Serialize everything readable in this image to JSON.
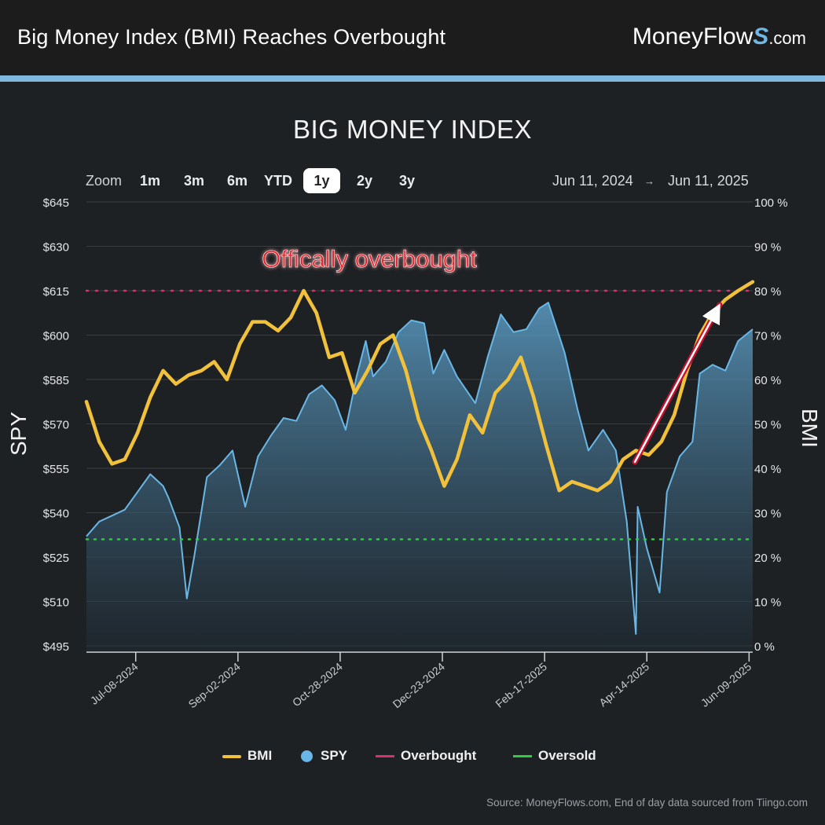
{
  "header": {
    "title": "Big Money Index (BMI) Reaches Overbought",
    "brand_main": "MoneyFlow",
    "brand_s": "S",
    "brand_tld": ".com",
    "accent_color": "#7fb8df"
  },
  "zoom": {
    "label": "Zoom",
    "buttons": [
      "1m",
      "3m",
      "6m",
      "YTD",
      "1y",
      "2y",
      "3y"
    ],
    "active": "1y"
  },
  "range": {
    "start": "Jun 11, 2024",
    "arrow": "→",
    "end": "Jun 11, 2025"
  },
  "legend": {
    "bmi": "BMI",
    "spy": "SPY",
    "overbought": "Overbought",
    "oversold": "Oversold"
  },
  "source": "Source: MoneyFlows.com, End of day data sourced from Tiingo.com",
  "chart_data": {
    "type": "line",
    "title": "BIG MONEY INDEX",
    "annotation": "Offically overbought",
    "left_axis": {
      "label": "SPY",
      "min": 495,
      "max": 645,
      "ticks": [
        "$645",
        "$630",
        "$615",
        "$600",
        "$585",
        "$570",
        "$555",
        "$540",
        "$525",
        "$510",
        "$495"
      ]
    },
    "right_axis": {
      "label": "BMI",
      "min": 0,
      "max": 100,
      "ticks": [
        "100 %",
        "90 %",
        "80 %",
        "70 %",
        "60 %",
        "50 %",
        "40 %",
        "30 %",
        "20 %",
        "10 %",
        "0 %"
      ]
    },
    "x_ticks": [
      "Jul-08-2024",
      "Sep-02-2024",
      "Oct-28-2024",
      "Dec-23-2024",
      "Feb-17-2025",
      "Apr-14-2025",
      "Jun-09-2025"
    ],
    "x_tick_dates": [
      "2024-07-08",
      "2024-09-02",
      "2024-10-28",
      "2024-12-23",
      "2025-02-17",
      "2025-04-14",
      "2025-06-09"
    ],
    "x_range": [
      "2024-06-11",
      "2025-06-11"
    ],
    "overbought_level": 80,
    "oversold_level": 24,
    "colors": {
      "bmi": "#f2c13c",
      "spy": "#69b7e6",
      "overbought": "#d6336c",
      "oversold": "#2ecc40",
      "annotation": "#e8202a"
    },
    "series": [
      {
        "name": "SPY",
        "axis": "left",
        "x": [
          "2024-06-11",
          "2024-06-18",
          "2024-06-25",
          "2024-07-02",
          "2024-07-09",
          "2024-07-16",
          "2024-07-23",
          "2024-07-26",
          "2024-08-01",
          "2024-08-05",
          "2024-08-09",
          "2024-08-16",
          "2024-08-23",
          "2024-08-30",
          "2024-09-06",
          "2024-09-13",
          "2024-09-20",
          "2024-09-27",
          "2024-10-04",
          "2024-10-11",
          "2024-10-18",
          "2024-10-25",
          "2024-10-31",
          "2024-11-06",
          "2024-11-11",
          "2024-11-15",
          "2024-11-22",
          "2024-11-29",
          "2024-12-06",
          "2024-12-13",
          "2024-12-18",
          "2024-12-24",
          "2024-12-31",
          "2025-01-10",
          "2025-01-17",
          "2025-01-24",
          "2025-01-31",
          "2025-02-07",
          "2025-02-14",
          "2025-02-19",
          "2025-02-28",
          "2025-03-07",
          "2025-03-13",
          "2025-03-21",
          "2025-03-28",
          "2025-04-03",
          "2025-04-08",
          "2025-04-09",
          "2025-04-14",
          "2025-04-21",
          "2025-04-25",
          "2025-05-02",
          "2025-05-09",
          "2025-05-13",
          "2025-05-20",
          "2025-05-27",
          "2025-06-03",
          "2025-06-11"
        ],
        "values": [
          532,
          537,
          539,
          541,
          547,
          553,
          549,
          545,
          535,
          511,
          525,
          552,
          556,
          561,
          542,
          559,
          566,
          572,
          571,
          580,
          583,
          578,
          568,
          586,
          598,
          586,
          591,
          601,
          605,
          604,
          587,
          595,
          586,
          577,
          593,
          607,
          601,
          602,
          609,
          611,
          594,
          575,
          561,
          568,
          561,
          537,
          499,
          542,
          528,
          513,
          547,
          559,
          564,
          587,
          590,
          588,
          598,
          602
        ]
      },
      {
        "name": "BMI",
        "axis": "right",
        "x": [
          "2024-06-11",
          "2024-06-18",
          "2024-06-25",
          "2024-07-02",
          "2024-07-09",
          "2024-07-16",
          "2024-07-23",
          "2024-07-30",
          "2024-08-06",
          "2024-08-13",
          "2024-08-20",
          "2024-08-27",
          "2024-09-03",
          "2024-09-10",
          "2024-09-17",
          "2024-09-24",
          "2024-10-01",
          "2024-10-08",
          "2024-10-15",
          "2024-10-22",
          "2024-10-29",
          "2024-11-05",
          "2024-11-12",
          "2024-11-19",
          "2024-11-26",
          "2024-12-03",
          "2024-12-10",
          "2024-12-17",
          "2024-12-24",
          "2024-12-31",
          "2025-01-07",
          "2025-01-14",
          "2025-01-21",
          "2025-01-28",
          "2025-02-04",
          "2025-02-11",
          "2025-02-18",
          "2025-02-25",
          "2025-03-04",
          "2025-03-11",
          "2025-03-18",
          "2025-03-25",
          "2025-04-01",
          "2025-04-08",
          "2025-04-15",
          "2025-04-22",
          "2025-04-29",
          "2025-05-06",
          "2025-05-13",
          "2025-05-20",
          "2025-05-27",
          "2025-06-03",
          "2025-06-11"
        ],
        "values": [
          55,
          46,
          41,
          42,
          48,
          56,
          62,
          59,
          61,
          62,
          64,
          60,
          68,
          73,
          73,
          71,
          74,
          80,
          75,
          65,
          66,
          57,
          62,
          68,
          70,
          62,
          51,
          44,
          36,
          42,
          52,
          48,
          57,
          60,
          65,
          56,
          45,
          35,
          37,
          36,
          35,
          37,
          42,
          44,
          43,
          46,
          52,
          62,
          70,
          75,
          78,
          80,
          82
        ]
      }
    ]
  }
}
